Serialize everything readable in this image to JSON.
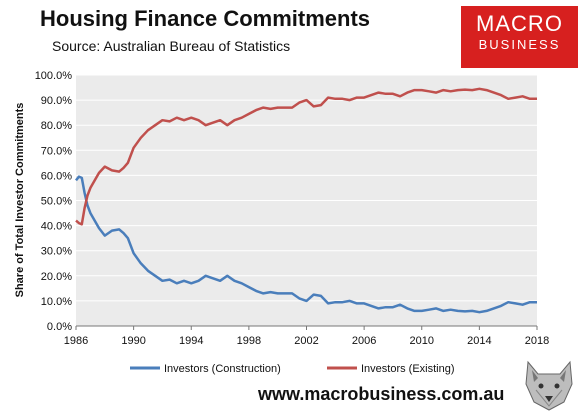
{
  "header": {
    "title": "Housing Finance Commitments",
    "subtitle": "Source: Australian Bureau of Statistics"
  },
  "logo": {
    "line1": "MACRO",
    "line2": "BUSINESS",
    "color": "#d7201f"
  },
  "footer": {
    "url": "www.macrobusiness.com.au"
  },
  "chart_data": {
    "type": "line",
    "title": "Housing Finance Commitments",
    "ylabel": "Share of Total Investor Commitments",
    "xlabel": "",
    "xlim": [
      1986,
      2018
    ],
    "ylim": [
      0,
      100
    ],
    "x_ticks": [
      "1986",
      "1990",
      "1994",
      "1998",
      "2002",
      "2006",
      "2010",
      "2014",
      "2018"
    ],
    "y_ticks": [
      "0.0%",
      "10.0%",
      "20.0%",
      "30.0%",
      "40.0%",
      "50.0%",
      "60.0%",
      "70.0%",
      "80.0%",
      "90.0%",
      "100.0%"
    ],
    "grid": "horizontal",
    "legend_position": "bottom",
    "plot_background": "#ebebeb",
    "series": [
      {
        "name": "Investors (Construction)",
        "color": "#4a7ebb",
        "x": [
          1986.0,
          1986.2,
          1986.4,
          1986.6,
          1986.8,
          1987.0,
          1987.3,
          1987.6,
          1988.0,
          1988.5,
          1989.0,
          1989.3,
          1989.6,
          1990.0,
          1990.5,
          1991.0,
          1991.5,
          1992.0,
          1992.5,
          1993.0,
          1993.5,
          1994.0,
          1994.5,
          1995.0,
          1995.5,
          1996.0,
          1996.5,
          1997.0,
          1997.5,
          1998.0,
          1998.5,
          1999.0,
          1999.5,
          2000.0,
          2000.5,
          2001.0,
          2001.5,
          2002.0,
          2002.5,
          2003.0,
          2003.5,
          2004.0,
          2004.5,
          2005.0,
          2005.5,
          2006.0,
          2006.5,
          2007.0,
          2007.5,
          2008.0,
          2008.5,
          2009.0,
          2009.5,
          2010.0,
          2010.5,
          2011.0,
          2011.5,
          2012.0,
          2012.5,
          2013.0,
          2013.5,
          2014.0,
          2014.5,
          2015.0,
          2015.5,
          2016.0,
          2016.5,
          2017.0,
          2017.5,
          2018.0
        ],
        "values": [
          58,
          59.5,
          59,
          53,
          48,
          45,
          42,
          39,
          36,
          38,
          38.5,
          37,
          35,
          29,
          25,
          22,
          20,
          18,
          18.5,
          17,
          18,
          17,
          18,
          20,
          19,
          18,
          20,
          18,
          17,
          15.5,
          14,
          13,
          13.5,
          13,
          13,
          13,
          11,
          10,
          12.5,
          12,
          9,
          9.5,
          9.5,
          10,
          9,
          9,
          8,
          7,
          7.5,
          7.5,
          8.5,
          7,
          6,
          6,
          6.5,
          7,
          6,
          6.5,
          6,
          5.8,
          6,
          5.5,
          6,
          7,
          8,
          9.5,
          9,
          8.5,
          9.5,
          9.5
        ]
      },
      {
        "name": "Investors (Existing)",
        "color": "#c0504d",
        "x": [
          1986.0,
          1986.2,
          1986.4,
          1986.6,
          1986.8,
          1987.0,
          1987.3,
          1987.6,
          1988.0,
          1988.5,
          1989.0,
          1989.3,
          1989.6,
          1990.0,
          1990.5,
          1991.0,
          1991.5,
          1992.0,
          1992.5,
          1993.0,
          1993.5,
          1994.0,
          1994.5,
          1995.0,
          1995.5,
          1996.0,
          1996.5,
          1997.0,
          1997.5,
          1998.0,
          1998.5,
          1999.0,
          1999.5,
          2000.0,
          2000.5,
          2001.0,
          2001.5,
          2002.0,
          2002.5,
          2003.0,
          2003.5,
          2004.0,
          2004.5,
          2005.0,
          2005.5,
          2006.0,
          2006.5,
          2007.0,
          2007.5,
          2008.0,
          2008.5,
          2009.0,
          2009.5,
          2010.0,
          2010.5,
          2011.0,
          2011.5,
          2012.0,
          2012.5,
          2013.0,
          2013.5,
          2014.0,
          2014.5,
          2015.0,
          2015.5,
          2016.0,
          2016.5,
          2017.0,
          2017.5,
          2018.0
        ],
        "values": [
          42,
          41,
          40.5,
          47,
          52,
          55,
          58,
          61,
          63.5,
          62,
          61.5,
          63,
          65,
          71,
          75,
          78,
          80,
          82,
          81.5,
          83,
          82,
          83,
          82,
          80,
          81,
          82,
          80,
          82,
          83,
          84.5,
          86,
          87,
          86.5,
          87,
          87,
          87,
          89,
          90,
          87.5,
          88,
          91,
          90.5,
          90.5,
          90,
          91,
          91,
          92,
          93,
          92.5,
          92.5,
          91.5,
          93,
          94,
          94,
          93.5,
          93,
          94,
          93.5,
          94,
          94.2,
          94,
          94.5,
          94,
          93,
          92,
          90.5,
          91,
          91.5,
          90.5,
          90.5
        ]
      }
    ]
  }
}
